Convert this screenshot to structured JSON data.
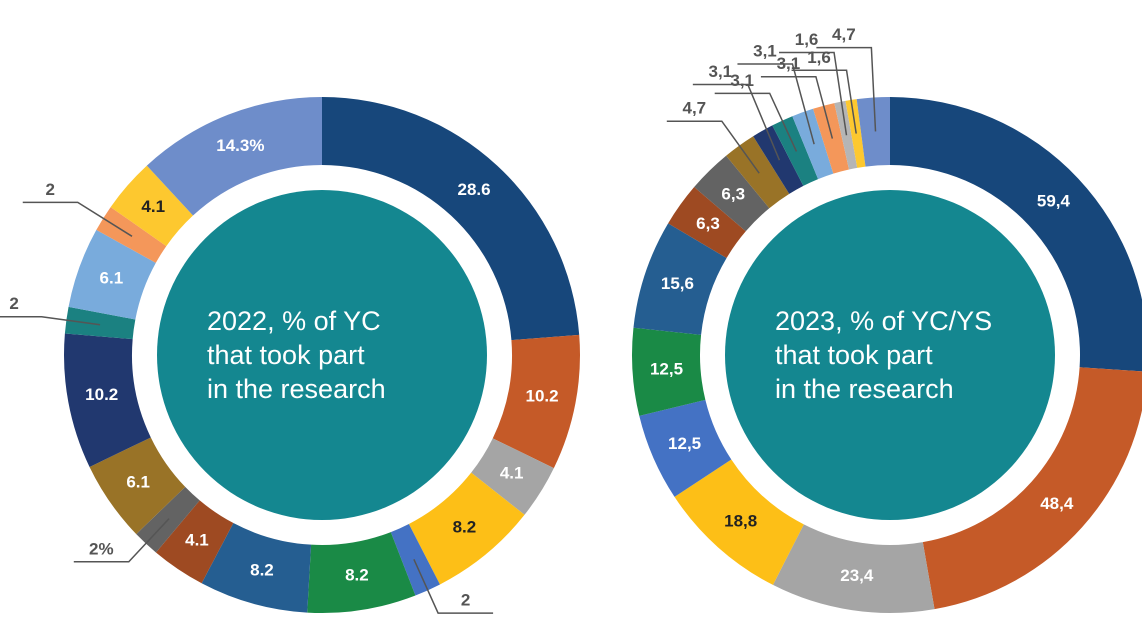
{
  "chart_data": [
    {
      "type": "donut",
      "center_text": [
        "2022, % of YC",
        "that took part",
        "in the research"
      ],
      "values": [
        28.6,
        10.2,
        4.1,
        8.2,
        2,
        8.2,
        8.2,
        4.1,
        2,
        6.1,
        10.2,
        2,
        6.1,
        2,
        4.1,
        14.3
      ],
      "value_labels": [
        "28.6",
        "10.2",
        "4.1",
        "8.2",
        "2",
        "8.2",
        "8.2",
        "4.1",
        "2%",
        "6.1",
        "10.2",
        "2",
        "6.1",
        "2",
        "4.1",
        "14.3%"
      ],
      "colors": [
        "#17477b",
        "#c55a28",
        "#a5a5a5",
        "#fdbf17",
        "#4472c4",
        "#1a8a46",
        "#255e91",
        "#9e4a22",
        "#636363",
        "#997327",
        "#21386f",
        "#1b8181",
        "#79abdc",
        "#f4975a",
        "#fdc82f",
        "#6e8dca"
      ]
    },
    {
      "type": "donut",
      "center_text": [
        "2023, % of YC/YS",
        "that took part",
        "in the research"
      ],
      "values": [
        59.4,
        48.4,
        23.4,
        18.8,
        12.5,
        12.5,
        15.6,
        6.3,
        6.3,
        4.7,
        3.1,
        3.1,
        3.1,
        3.1,
        1.6,
        1.6,
        4.7
      ],
      "value_labels": [
        "59,4",
        "48,4",
        "23,4",
        "18,8",
        "12,5",
        "12,5",
        "15,6",
        "6,3",
        "6,3",
        "4,7",
        "3,1",
        "3,1",
        "3,1",
        "3,1",
        "1,6",
        "1,6",
        "4,7"
      ],
      "colors": [
        "#17477b",
        "#c55a28",
        "#a5a5a5",
        "#fdbf17",
        "#4472c4",
        "#1a8a46",
        "#255e91",
        "#9e4a22",
        "#636363",
        "#997327",
        "#21386f",
        "#1b8181",
        "#79abdc",
        "#f4975a",
        "#b5b5b5",
        "#fdc82f",
        "#6e8dca"
      ]
    }
  ]
}
